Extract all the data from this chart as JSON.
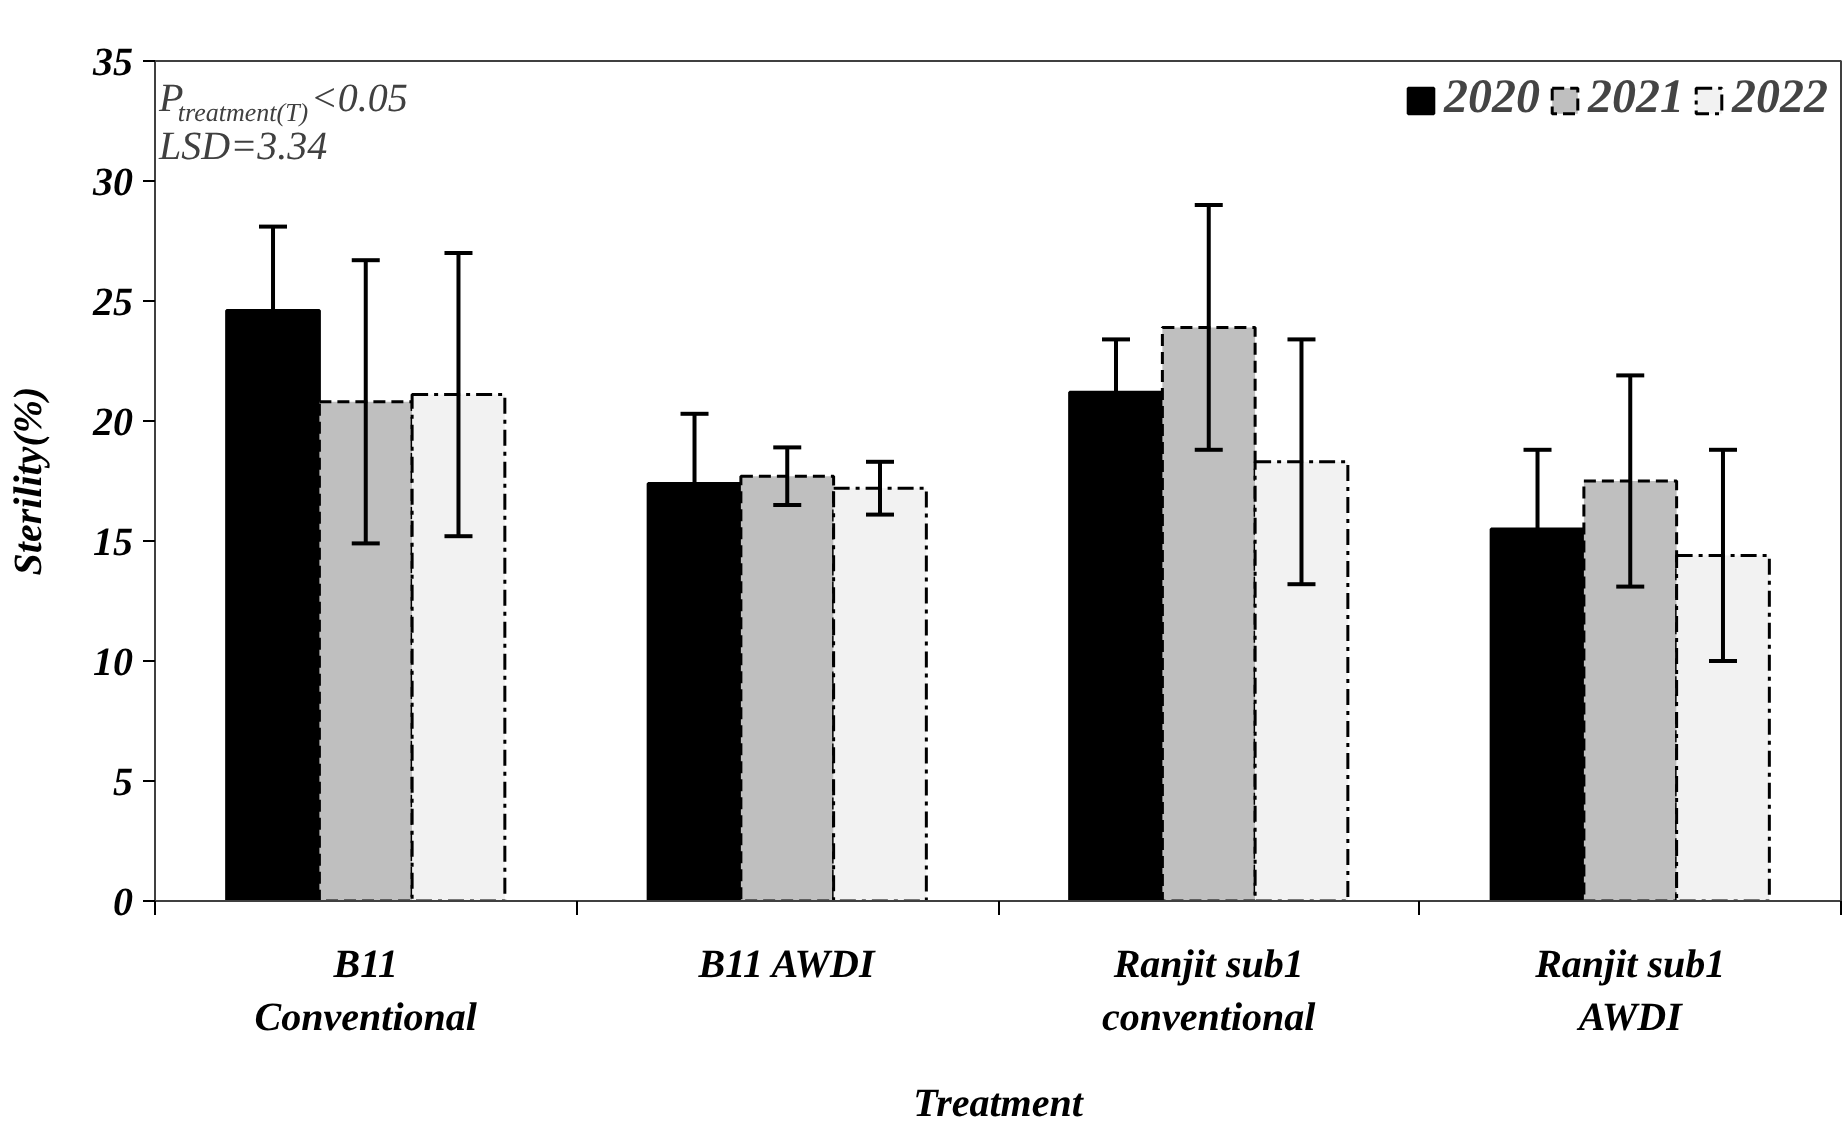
{
  "chart_data": {
    "type": "bar",
    "xlabel": "Treatment",
    "ylabel": "Sterility(%)",
    "categories": [
      "B11 Conventional",
      "B11 AWDI",
      "Ranjit sub1 conventional",
      "Ranjit sub1 AWDI"
    ],
    "series": [
      {
        "name": "2020",
        "color": "#000000",
        "line_style": "solid",
        "values": [
          24.6,
          17.4,
          21.2,
          15.5
        ],
        "errors": [
          3.5,
          2.9,
          2.2,
          3.3
        ]
      },
      {
        "name": "2021",
        "color": "#bfbfbf",
        "line_style": "dashed",
        "values": [
          20.8,
          17.7,
          23.9,
          17.5
        ],
        "errors": [
          5.9,
          1.2,
          5.1,
          4.4
        ]
      },
      {
        "name": "2022",
        "color": "#f2f2f2",
        "line_style": "dashdot",
        "values": [
          21.1,
          17.2,
          18.3,
          14.4
        ],
        "errors": [
          5.9,
          1.1,
          5.1,
          4.4
        ]
      }
    ],
    "ylim": [
      0,
      35
    ],
    "yticks": [
      0,
      5,
      10,
      15,
      20,
      25,
      30,
      35
    ],
    "grid": false,
    "legend": "top right",
    "annotations": [
      "P$_{treatment(T)}$<0.05",
      "LSD=3.34"
    ]
  }
}
